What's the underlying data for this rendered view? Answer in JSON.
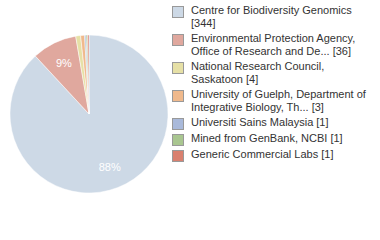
{
  "chart_data": {
    "type": "pie",
    "categories": [
      "Centre for Biodiversity Genomics [344]",
      "Environmental Protection Agency, Office of Research and De... [36]",
      "National Research Council, Saskatoon [4]",
      "University of Guelph, Department of Integrative Biology, Th... [3]",
      "Universiti Sains Malaysia [1]",
      "Mined from GenBank, NCBI [1]",
      "Generic Commercial Labs [1]"
    ],
    "values": [
      88.2,
      9.2,
      1.0,
      0.8,
      0.3,
      0.3,
      0.3
    ],
    "value_labels": [
      "88%",
      "9%",
      null,
      null,
      null,
      null,
      null
    ],
    "colors": [
      "#cdd9e6",
      "#e0a89e",
      "#e6e0a6",
      "#f0b98c",
      "#a9b9da",
      "#a9c690",
      "#d9806f"
    ],
    "data_labels": true,
    "legend": "right"
  }
}
